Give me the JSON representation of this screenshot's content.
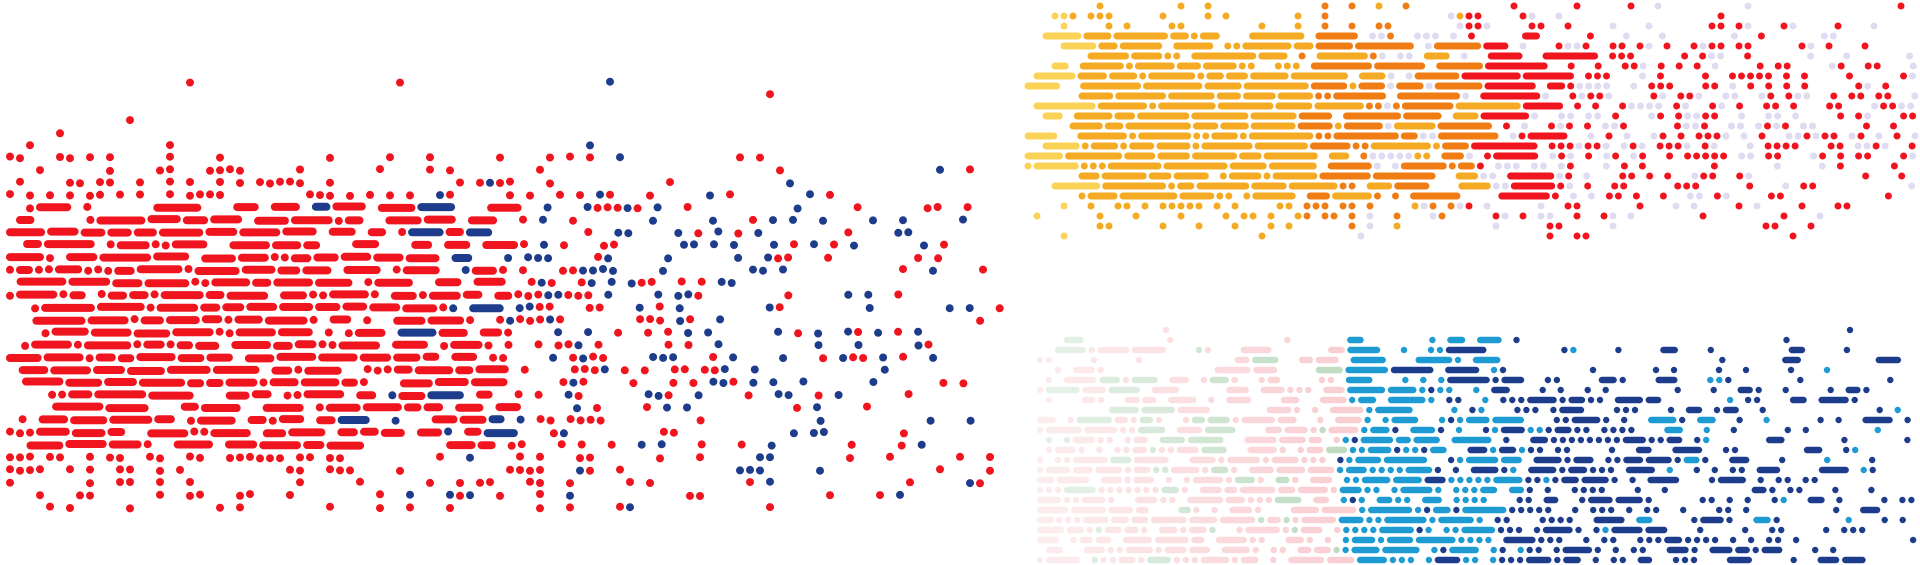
{
  "artwork": {
    "kind": "abstract dot-field banner",
    "background": "#ffffff",
    "colors": {
      "red": "#f0141e",
      "navy": "#1e3c8c",
      "orange": "#f07d14",
      "amber": "#f5aa23",
      "yellow": "#fad255",
      "lavender": "#dcd7f0",
      "pink": "#f5b4b9",
      "green": "#9bc8a0",
      "cyan": "#1e9bd2"
    }
  }
}
